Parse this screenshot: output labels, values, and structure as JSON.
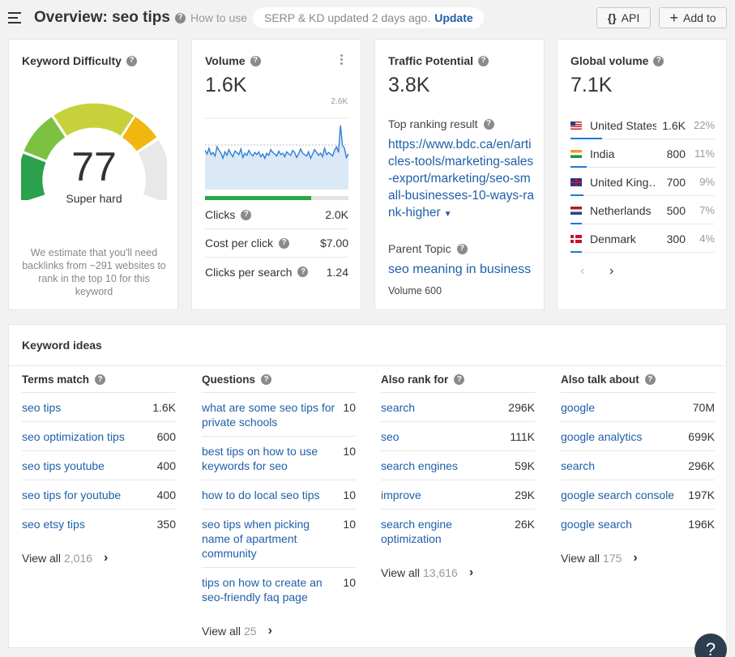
{
  "header": {
    "title": "Overview: seo tips",
    "how_to_use": "How to use",
    "update_text": "SERP & KD updated 2 days ago.",
    "update_link": "Update",
    "api_label": "API",
    "add_label": "Add to"
  },
  "kd": {
    "title": "Keyword Difficulty",
    "value": "77",
    "label": "Super hard",
    "note": "We estimate that you'll need backlinks from ~291 websites to rank in the top 10 for this keyword"
  },
  "volume": {
    "title": "Volume",
    "value": "1.6K",
    "spark_max": "2.6K",
    "clicks_share": 0.74,
    "sparkline": [
      55,
      50,
      58,
      49,
      52,
      47,
      60,
      55,
      51,
      44,
      53,
      48,
      56,
      50,
      46,
      54,
      52,
      49,
      57,
      45,
      51,
      48,
      55,
      50,
      47,
      52,
      49,
      53,
      46,
      50,
      44,
      51,
      48,
      56,
      52,
      50,
      47,
      54,
      49,
      51,
      46,
      53,
      50,
      48,
      55,
      52,
      45,
      50,
      57,
      51,
      49,
      47,
      53,
      44,
      50,
      56,
      52,
      48,
      51,
      46,
      58,
      49,
      52,
      50,
      47,
      55,
      60,
      52,
      90,
      62,
      58,
      45,
      50
    ],
    "rows": [
      {
        "label": "Clicks",
        "value": "2.0K"
      },
      {
        "label": "Cost per click",
        "value": "$7.00"
      },
      {
        "label": "Clicks per search",
        "value": "1.24"
      }
    ]
  },
  "traffic": {
    "title": "Traffic Potential",
    "value": "3.8K",
    "top_label": "Top ranking result",
    "url": "https://www.bdc.ca/en/articles-tools/marketing-sales-export/marketing/seo-small-businesses-10-ways-rank-higher",
    "parent_label": "Parent Topic",
    "parent_topic": "seo meaning in business",
    "parent_volume": "Volume 600"
  },
  "global": {
    "title": "Global volume",
    "value": "7.1K",
    "countries": [
      {
        "name": "United States",
        "value": "1.6K",
        "pct": "22%",
        "share": 0.22,
        "flag": "us"
      },
      {
        "name": "India",
        "value": "800",
        "pct": "11%",
        "share": 0.11,
        "flag": "in"
      },
      {
        "name": "United Kingdom",
        "display": "United King…",
        "value": "700",
        "pct": "9%",
        "share": 0.09,
        "flag": "gb"
      },
      {
        "name": "Netherlands",
        "value": "500",
        "pct": "7%",
        "share": 0.07,
        "flag": "nl"
      },
      {
        "name": "Denmark",
        "value": "300",
        "pct": "4%",
        "share": 0.04,
        "flag": "dk"
      }
    ]
  },
  "ideas": {
    "title": "Keyword ideas",
    "columns": [
      {
        "heading": "Terms match",
        "rows": [
          {
            "kw": "seo tips",
            "num": "1.6K"
          },
          {
            "kw": "seo optimization tips",
            "num": "600"
          },
          {
            "kw": "seo tips youtube",
            "num": "400"
          },
          {
            "kw": "seo tips for youtube",
            "num": "400"
          },
          {
            "kw": "seo etsy tips",
            "num": "350"
          }
        ],
        "view_all": "View all",
        "count": "2,016"
      },
      {
        "heading": "Questions",
        "rows": [
          {
            "kw": "what are some seo tips for private schools",
            "num": "10"
          },
          {
            "kw": "best tips on how to use keywords for seo",
            "num": "10"
          },
          {
            "kw": "how to do local seo tips",
            "num": "10"
          },
          {
            "kw": "seo tips when picking name of apartment community",
            "num": "10"
          },
          {
            "kw": "tips on how to create an seo-friendly faq page",
            "num": "10"
          }
        ],
        "view_all": "View all",
        "count": "25"
      },
      {
        "heading": "Also rank for",
        "rows": [
          {
            "kw": "search",
            "num": "296K"
          },
          {
            "kw": "seo",
            "num": "111K"
          },
          {
            "kw": "search engines",
            "num": "59K"
          },
          {
            "kw": "improve",
            "num": "29K"
          },
          {
            "kw": "search engine optimization",
            "num": "26K"
          }
        ],
        "view_all": "View all",
        "count": "13,616"
      },
      {
        "heading": "Also talk about",
        "rows": [
          {
            "kw": "google",
            "num": "70M"
          },
          {
            "kw": "google analytics",
            "num": "699K"
          },
          {
            "kw": "search",
            "num": "296K"
          },
          {
            "kw": "google search console",
            "num": "197K"
          },
          {
            "kw": "google search",
            "num": "196K"
          }
        ],
        "view_all": "View all",
        "count": "175"
      }
    ]
  },
  "help": {
    "label": "?"
  }
}
